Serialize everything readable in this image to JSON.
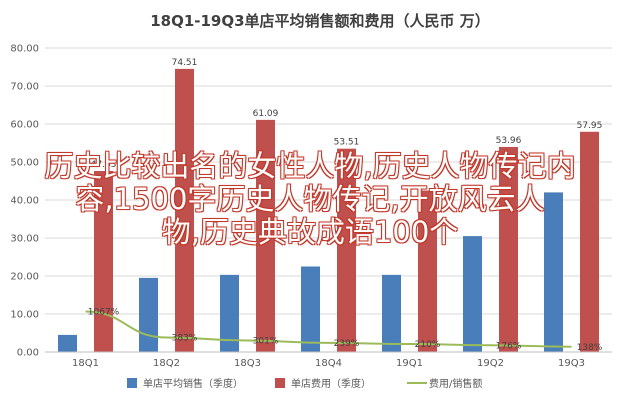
{
  "chart_data": {
    "type": "bar",
    "title": "18Q1-19Q3单店平均销售额和费用（人民币 万）",
    "categories": [
      "18Q1",
      "18Q2",
      "18Q3",
      "18Q4",
      "19Q1",
      "19Q2",
      "19Q3"
    ],
    "ylim": [
      0,
      80
    ],
    "yticks": [
      "0.00",
      "10.00",
      "20.00",
      "30.00",
      "40.00",
      "50.00",
      "60.00",
      "70.00",
      "80.00"
    ],
    "grid": true,
    "legend_position": "bottom",
    "series": [
      {
        "name": "单店平均销售（季度）",
        "kind": "bar",
        "color": "#4a7ebb",
        "values": [
          4.5,
          19.5,
          20.3,
          22.5,
          20.3,
          30.5,
          42.0
        ],
        "labels": []
      },
      {
        "name": "单店费用（季度）",
        "kind": "bar",
        "color": "#c0504d",
        "values": [
          47.63,
          74.51,
          61.09,
          53.51,
          42.5,
          53.96,
          57.95
        ],
        "labels": [
          "47.63",
          "74.51",
          "61.09",
          "53.51",
          "",
          "53.96",
          "57.95"
        ]
      },
      {
        "name": "费用/销售额",
        "kind": "line",
        "color": "#9bbb59",
        "values": [
          10.67,
          3.83,
          3.01,
          2.39,
          2.1,
          1.76,
          1.38
        ],
        "labels": [
          "1067%",
          "383%",
          "301%",
          "239%",
          "210%",
          "176%",
          "138%"
        ]
      }
    ]
  },
  "watermark": {
    "lines": [
      "历史比较出名的女性人物,历史人物传记内",
      "容,1500字历史人物传记,开放风云人",
      "物,历史典故成语100个"
    ]
  }
}
